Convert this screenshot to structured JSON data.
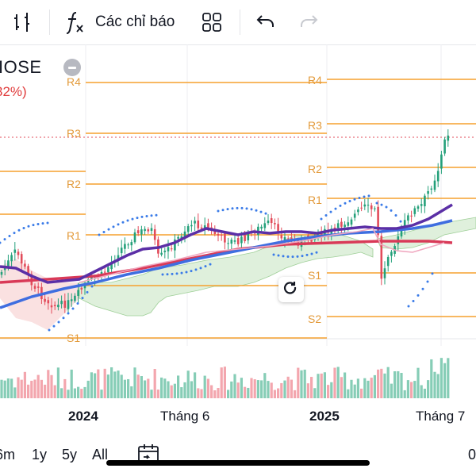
{
  "toolbar": {
    "indicators_label": "Các chỉ báo",
    "icons": [
      "bar-style-icon",
      "function-icon",
      "layout-grid-icon",
      "undo-icon",
      "redo-icon"
    ]
  },
  "legend": {
    "symbol_text": "IOSE",
    "change_text": "32%)"
  },
  "levels": {
    "left": [
      "R4",
      "R3",
      "R2",
      "R1",
      "S1"
    ],
    "right": [
      "R4",
      "R3",
      "R2",
      "R1",
      "S1",
      "S2"
    ]
  },
  "time_axis": {
    "labels": [
      "2024",
      "Tháng 6",
      "2025",
      "Tháng 7"
    ]
  },
  "ranges": [
    "6m",
    "1y",
    "5y",
    "All"
  ],
  "right_value": "0",
  "colors": {
    "pivot": "#f5a12f",
    "ma_short": "#5b2fa6",
    "ma_mid": "#3f6ee0",
    "ma_long": "#d93a58",
    "cloud_fill": "#dff0dc",
    "cloud_fill_down": "#f9dede",
    "up": "#24a07a",
    "down": "#e24b5a",
    "sar": "#3a7be8"
  }
}
